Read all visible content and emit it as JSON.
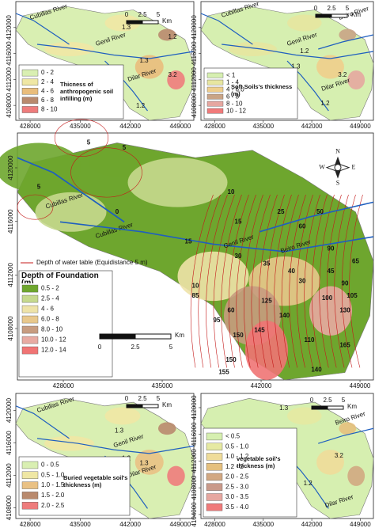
{
  "panels": [
    {
      "legend_title": "Thicness of anthropogenic soil infilling (m)",
      "legend": [
        {
          "label": "0 - 2",
          "color": "#d9efb2"
        },
        {
          "label": "2 - 4",
          "color": "#efe7a4"
        },
        {
          "label": "4 - 6",
          "color": "#e9bd7c"
        },
        {
          "label": "6 - 8",
          "color": "#b98a6e"
        },
        {
          "label": "8 - 10",
          "color": "#ee7c7c"
        }
      ],
      "rivers": [
        "Cubillas River",
        "Genil River",
        "Dilar River"
      ],
      "unit_labels": [
        "1.2",
        "1.3",
        "1.3",
        "3.2",
        "1.2"
      ],
      "scale": [
        "0",
        "2.5",
        "5",
        "Km"
      ],
      "xlim": [
        426000,
        450900
      ],
      "xticks": [
        428000,
        435000,
        442000,
        449000
      ],
      "ylim": [
        4105700,
        4124000
      ],
      "yticks": [
        4120000,
        4116000,
        4112000,
        4108000
      ]
    },
    {
      "legend_title": "Soft Soils's thickness (m)",
      "legend": [
        {
          "label": "< 1",
          "color": "#d6efb0"
        },
        {
          "label": "1 - 4",
          "color": "#e7e6a0"
        },
        {
          "label": "4 - 6.0",
          "color": "#efce8c"
        },
        {
          "label": "6 - 8",
          "color": "#c9a486"
        },
        {
          "label": "8 - 10",
          "color": "#e6a7a0"
        },
        {
          "label": "10 - 12",
          "color": "#f07a7a"
        }
      ],
      "rivers": [
        "Cubillas River",
        "Genil River",
        "Beiro River",
        "Dilar River"
      ],
      "unit_labels": [
        "1.3",
        "1.2",
        "3.2",
        "1.2"
      ],
      "scale": [
        "0",
        "2.5",
        "5",
        "Km"
      ],
      "xlim": [
        426000,
        450900
      ],
      "xticks": [
        428000,
        435000,
        442000,
        449000
      ],
      "ylim": [
        4105700,
        4124000
      ],
      "yticks": [
        4120000,
        4116000,
        4112000,
        4108000
      ]
    },
    {
      "legend_title": "Depth of Foundation (m)",
      "legend": [
        {
          "label": "0.5 - 2",
          "color": "#6ea62e"
        },
        {
          "label": "2.5 - 4",
          "color": "#c6d98e"
        },
        {
          "label": "4 - 6",
          "color": "#eee3a8"
        },
        {
          "label": "6.0 - 8",
          "color": "#e8c88c"
        },
        {
          "label": "8.0 - 10",
          "color": "#c79c80"
        },
        {
          "label": "10.0 - 12",
          "color": "#e8aaa2"
        },
        {
          "label": "12.0 - 14",
          "color": "#f07474"
        }
      ],
      "line_legend": "Depth of water table (Equidistance 5 m)",
      "rivers": [
        "Cubillas River",
        "Cubillas River",
        "Genil River",
        "Beiro River"
      ],
      "contour_labels": [
        "5",
        "5",
        "5",
        "0",
        "10",
        "15",
        "25",
        "50",
        "60",
        "30",
        "35",
        "90",
        "65",
        "30",
        "40",
        "45",
        "90",
        "100",
        "105",
        "130",
        "85",
        "125",
        "140",
        "60",
        "95",
        "150",
        "145",
        "165",
        "110",
        "140",
        "150",
        "155",
        "10",
        "15"
      ],
      "compass": [
        "N",
        "S",
        "W",
        "E"
      ],
      "scale": [
        "0",
        "2.5",
        "5",
        "Km"
      ],
      "xlim": [
        424750,
        449950
      ],
      "xticks": [
        428000,
        435000,
        442000,
        449000
      ],
      "ylim": [
        4104160,
        4122600
      ],
      "yticks": [
        4120000,
        4116000,
        4112000,
        4108000
      ]
    },
    {
      "legend_title": "Buried vegetable soil's thickness (m)",
      "legend": [
        {
          "label": "0 - 0.5",
          "color": "#d9efb2"
        },
        {
          "label": "0.5 - 1.0",
          "color": "#efe7a4"
        },
        {
          "label": "1.0 - 1.5",
          "color": "#e9c184"
        },
        {
          "label": "1.5 - 2.0",
          "color": "#b98a6e"
        },
        {
          "label": "2.0 - 2.5",
          "color": "#ee7c7c"
        }
      ],
      "rivers": [
        "Cubillas River",
        "Genil River",
        "Dilar River"
      ],
      "unit_labels": [
        "1.3",
        "1.2",
        "1.3",
        "1.2"
      ],
      "scale": [
        "0",
        "2.5",
        "5",
        "Km"
      ],
      "xlim": [
        426000,
        450900
      ],
      "xticks": [
        428000,
        435000,
        442000,
        449000
      ],
      "ylim": [
        4106700,
        4122100
      ],
      "yticks": [
        4120000,
        4116000,
        4112000,
        4108000
      ]
    },
    {
      "legend_title": "vegetable soil's thickness (m)",
      "legend": [
        {
          "label": "< 0.5",
          "color": "#d6efb0"
        },
        {
          "label": "0.5 - 1.0",
          "color": "#e6e9a2"
        },
        {
          "label": "1.0 - 1.2",
          "color": "#efdc9a"
        },
        {
          "label": "1.2 - 2",
          "color": "#e5c07e"
        },
        {
          "label": "2.0 - 2.5",
          "color": "#d2a882"
        },
        {
          "label": "2.5 - 3.0",
          "color": "#c99a8a"
        },
        {
          "label": "3.0 - 3.5",
          "color": "#e6a7a0"
        },
        {
          "label": "3.5 - 4.0",
          "color": "#f07a7a"
        }
      ],
      "rivers": [
        "Beiro River",
        "Dilar River"
      ],
      "unit_labels": [
        "1.3",
        "1.2",
        "3.2",
        "1.2"
      ],
      "scale": [
        "0",
        "2.5",
        "5",
        "Km"
      ],
      "xlim": [
        426000,
        450900
      ],
      "xticks": [
        428000,
        435000,
        442000,
        449000
      ],
      "ylim": [
        4103400,
        4122130
      ],
      "yticks": [
        4120000,
        4116000,
        4112000,
        4108000,
        4104000
      ]
    }
  ]
}
